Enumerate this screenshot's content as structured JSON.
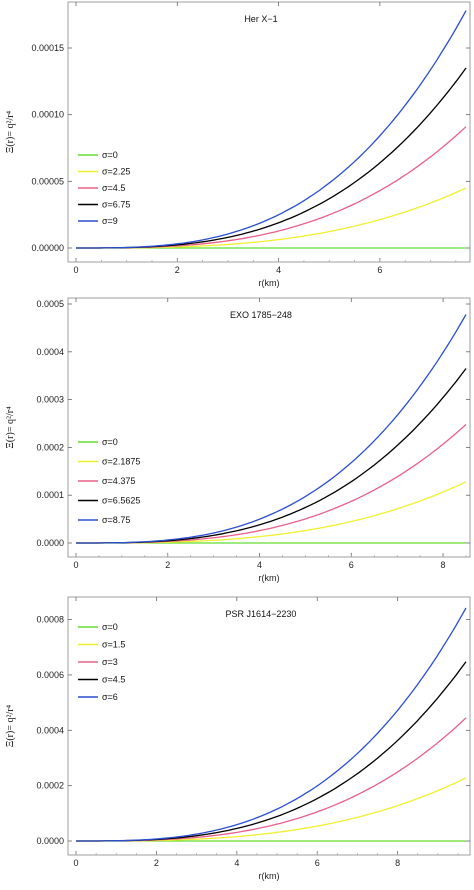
{
  "chart_data": [
    {
      "type": "line",
      "title": "Her X−1",
      "xlabel": "r(km)",
      "ylabel": "Ξ(r)= q²/r⁴",
      "xlim": [
        0,
        7.7
      ],
      "ylim": [
        0,
        0.00018
      ],
      "xticks": [
        "0",
        "2",
        "4",
        "6"
      ],
      "yticks": [
        "0.00000",
        "0.00005",
        "0.00010",
        "0.00015"
      ],
      "legend_position": "left-middle",
      "grid": false,
      "series": [
        {
          "name": "σ=0",
          "color": "#66dd33",
          "y_end": 0
        },
        {
          "name": "σ=2.25",
          "color": "#f0f030",
          "y_end": 4.5e-05
        },
        {
          "name": "σ=4.5",
          "color": "#e8608a",
          "y_end": 9.1e-05
        },
        {
          "name": "σ=6.75",
          "color": "#000000",
          "y_end": 0.000135
        },
        {
          "name": "σ=9",
          "color": "#2a4fd0",
          "y_end": 0.000178
        }
      ]
    },
    {
      "type": "line",
      "title": "EXO 1785−248",
      "xlabel": "r(km)",
      "ylabel": "Ξ(r)= q²/r⁴",
      "xlim": [
        0,
        8.5
      ],
      "ylim": [
        0,
        0.0005
      ],
      "xticks": [
        "0",
        "2",
        "4",
        "6",
        "8"
      ],
      "yticks": [
        "0.0000",
        "0.0001",
        "0.0002",
        "0.0003",
        "0.0004",
        "0.0005"
      ],
      "legend_position": "left-middle",
      "grid": false,
      "series": [
        {
          "name": "σ=0",
          "color": "#66dd33",
          "y_end": 0
        },
        {
          "name": "σ=2.1875",
          "color": "#f0f030",
          "y_end": 0.000128
        },
        {
          "name": "σ=4.375",
          "color": "#e8608a",
          "y_end": 0.000248
        },
        {
          "name": "σ=6.5625",
          "color": "#000000",
          "y_end": 0.000365
        },
        {
          "name": "σ=8.75",
          "color": "#2a4fd0",
          "y_end": 0.000478
        }
      ]
    },
    {
      "type": "line",
      "title": "PSR J1614−2230",
      "xlabel": "r(km)",
      "ylabel": "Ξ(r)= q²/r⁴",
      "xlim": [
        0,
        9.7
      ],
      "ylim": [
        0,
        0.00086
      ],
      "xticks": [
        "0",
        "2",
        "4",
        "6",
        "8"
      ],
      "yticks": [
        "0.0000",
        "0.0002",
        "0.0004",
        "0.0006",
        "0.0008"
      ],
      "legend_position": "top-left",
      "grid": false,
      "series": [
        {
          "name": "σ=0",
          "color": "#66dd33",
          "y_end": 0
        },
        {
          "name": "σ=1.5",
          "color": "#f0f030",
          "y_end": 0.000228
        },
        {
          "name": "σ=3",
          "color": "#e8608a",
          "y_end": 0.000445
        },
        {
          "name": "σ=4.5",
          "color": "#000000",
          "y_end": 0.000648
        },
        {
          "name": "σ=6",
          "color": "#2a4fd0",
          "y_end": 0.000842
        }
      ]
    }
  ]
}
